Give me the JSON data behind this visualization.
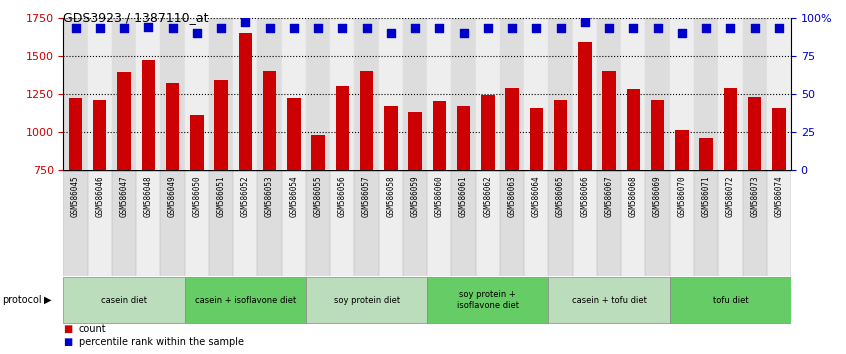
{
  "title": "GDS3923 / 1387110_at",
  "samples": [
    "GSM586045",
    "GSM586046",
    "GSM586047",
    "GSM586048",
    "GSM586049",
    "GSM586050",
    "GSM586051",
    "GSM586052",
    "GSM586053",
    "GSM586054",
    "GSM586055",
    "GSM586056",
    "GSM586057",
    "GSM586058",
    "GSM586059",
    "GSM586060",
    "GSM586061",
    "GSM586062",
    "GSM586063",
    "GSM586064",
    "GSM586065",
    "GSM586066",
    "GSM586067",
    "GSM586068",
    "GSM586069",
    "GSM586070",
    "GSM586071",
    "GSM586072",
    "GSM586073",
    "GSM586074"
  ],
  "counts": [
    1220,
    1210,
    1390,
    1470,
    1320,
    1110,
    1340,
    1650,
    1400,
    1220,
    980,
    1300,
    1400,
    1170,
    1130,
    1200,
    1170,
    1245,
    1290,
    1155,
    1210,
    1590,
    1400,
    1280,
    1210,
    1010,
    960,
    1285,
    1230,
    1160
  ],
  "percentiles": [
    93,
    93,
    93,
    94,
    93,
    90,
    93,
    97,
    93,
    93,
    93,
    93,
    93,
    90,
    93,
    93,
    90,
    93,
    93,
    93,
    93,
    97,
    93,
    93,
    93,
    90,
    93,
    93,
    93,
    93
  ],
  "ylim_left": [
    750,
    1750
  ],
  "ylim_right": [
    0,
    100
  ],
  "yticks_left": [
    750,
    1000,
    1250,
    1500,
    1750
  ],
  "yticks_right": [
    0,
    25,
    50,
    75,
    100
  ],
  "ytick_right_labels": [
    "0",
    "25",
    "50",
    "75",
    "100%"
  ],
  "bar_color": "#cc0000",
  "percentile_color": "#0000cc",
  "groups": [
    {
      "label": "casein diet",
      "start": 0,
      "end": 5,
      "color": "#bbddbb"
    },
    {
      "label": "casein + isoflavone diet",
      "start": 5,
      "end": 10,
      "color": "#66cc66"
    },
    {
      "label": "soy protein diet",
      "start": 10,
      "end": 15,
      "color": "#bbddbb"
    },
    {
      "label": "soy protein +\nisoflavone diet",
      "start": 15,
      "end": 20,
      "color": "#66cc66"
    },
    {
      "label": "casein + tofu diet",
      "start": 20,
      "end": 25,
      "color": "#bbddbb"
    },
    {
      "label": "tofu diet",
      "start": 25,
      "end": 30,
      "color": "#66cc66"
    }
  ],
  "bg_color": "#ffffff",
  "axis_color_left": "#cc0000",
  "axis_color_right": "#0000cc",
  "xtick_bg_even": "#dddddd",
  "xtick_bg_odd": "#eeeeee",
  "group_border_color": "#888888",
  "grid_color": "#000000"
}
